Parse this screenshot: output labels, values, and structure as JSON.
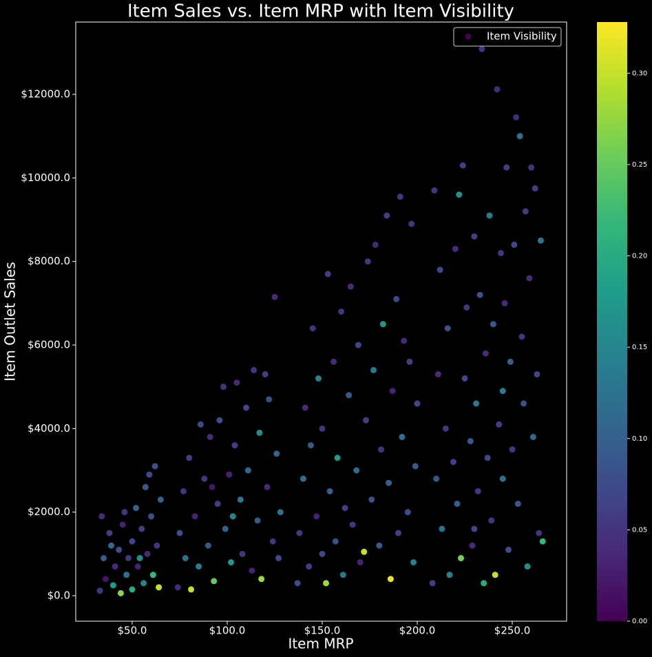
{
  "chart_data": {
    "type": "scatter",
    "title": "Item Sales vs. Item MRP with Item Visibility",
    "x_label": "Item MRP",
    "y_label": "Item Outlet Sales",
    "xlim": [
      20.3,
      278.6
    ],
    "ylim": [
      -610,
      13731
    ],
    "xticks": [
      {
        "value": 50,
        "label": "$50.0"
      },
      {
        "value": 100,
        "label": "$100.0"
      },
      {
        "value": 150,
        "label": "$150.0"
      },
      {
        "value": 200,
        "label": "$200.0"
      },
      {
        "value": 250,
        "label": "$250.0"
      }
    ],
    "yticks": [
      {
        "value": 0,
        "label": "$0.0"
      },
      {
        "value": 2000,
        "label": "$2000.0"
      },
      {
        "value": 4000,
        "label": "$4000.0"
      },
      {
        "value": 6000,
        "label": "$6000.0"
      },
      {
        "value": 8000,
        "label": "$8000.0"
      },
      {
        "value": 10000,
        "label": "$10000.0"
      },
      {
        "value": 12000,
        "label": "$12000.0"
      }
    ],
    "legend_position": "upper right",
    "colormap": "viridis",
    "colorbar": {
      "lim": [
        0,
        0.328
      ],
      "ticks": [
        {
          "value": 0,
          "label": "0.00"
        },
        {
          "value": 0.05,
          "label": "0.05"
        },
        {
          "value": 0.1,
          "label": "0.10"
        },
        {
          "value": 0.15,
          "label": "0.15"
        },
        {
          "value": 0.2,
          "label": "0.20"
        },
        {
          "value": 0.25,
          "label": "0.25"
        },
        {
          "value": 0.3,
          "label": "0.30"
        }
      ]
    },
    "series": [
      {
        "name": "Item Visibility",
        "x": [
          33,
          35,
          36,
          38,
          40,
          41,
          43,
          44,
          45,
          47,
          48,
          50,
          50,
          52,
          53,
          55,
          56,
          57,
          58,
          60,
          61,
          62,
          63,
          65,
          64,
          34,
          39,
          46,
          54,
          59,
          74,
          75,
          77,
          78,
          80,
          81,
          83,
          85,
          86,
          88,
          90,
          91,
          93,
          95,
          96,
          98,
          99,
          101,
          102,
          104,
          105,
          107,
          108,
          110,
          111,
          113,
          114,
          116,
          117,
          118,
          120,
          121,
          122,
          124,
          125,
          126,
          127,
          128,
          103,
          92,
          137,
          138,
          140,
          141,
          143,
          144,
          145,
          147,
          148,
          150,
          150,
          152,
          153,
          154,
          156,
          157,
          158,
          160,
          161,
          162,
          164,
          165,
          166,
          168,
          169,
          170,
          172,
          173,
          174,
          176,
          177,
          178,
          180,
          181,
          182,
          184,
          185,
          186,
          187,
          189,
          190,
          191,
          192,
          193,
          195,
          196,
          197,
          198,
          199,
          200,
          208,
          209,
          210,
          211,
          212,
          213,
          215,
          216,
          217,
          219,
          220,
          221,
          222,
          223,
          224,
          225,
          226,
          228,
          229,
          230,
          231,
          232,
          233,
          234,
          235,
          236,
          237,
          238,
          239,
          240,
          241,
          242,
          243,
          244,
          245,
          246,
          247,
          248,
          249,
          250,
          251,
          252,
          253,
          254,
          255,
          256,
          257,
          258,
          259,
          260,
          261,
          262,
          263,
          264,
          265,
          266,
          245,
          230
        ],
        "values": [
          120,
          900,
          400,
          1500,
          250,
          700,
          1100,
          60,
          1700,
          500,
          900,
          1300,
          150,
          2100,
          700,
          1600,
          300,
          2600,
          1000,
          1900,
          500,
          3100,
          1200,
          2300,
          200,
          1900,
          1200,
          2000,
          900,
          2900,
          200,
          1500,
          2500,
          900,
          3300,
          150,
          1900,
          700,
          4100,
          2800,
          1200,
          3800,
          350,
          2200,
          4200,
          5000,
          1600,
          2900,
          800,
          3600,
          5100,
          2300,
          1000,
          4500,
          3000,
          600,
          5400,
          1800,
          3900,
          400,
          5300,
          2600,
          4700,
          1300,
          7150,
          3400,
          900,
          2000,
          1900,
          2600,
          300,
          1500,
          2800,
          4500,
          700,
          3600,
          6400,
          1900,
          5200,
          1000,
          4000,
          300,
          7700,
          2500,
          5600,
          1300,
          3300,
          6800,
          500,
          2100,
          4800,
          7400,
          1700,
          3000,
          6000,
          800,
          1050,
          4200,
          8000,
          2300,
          5400,
          8400,
          1200,
          3500,
          6500,
          9100,
          2700,
          400,
          4900,
          7100,
          1500,
          9550,
          3800,
          6100,
          2000,
          5600,
          8900,
          800,
          3100,
          4600,
          300,
          9700,
          2800,
          5300,
          7800,
          1600,
          4000,
          6400,
          500,
          3200,
          8300,
          2200,
          9600,
          900,
          10300,
          5200,
          6900,
          3700,
          1200,
          8600,
          4600,
          2500,
          7200,
          13086,
          300,
          5800,
          3300,
          9100,
          1800,
          6500,
          500,
          12120,
          4100,
          8200,
          2800,
          7000,
          10250,
          1100,
          5600,
          3500,
          8400,
          11450,
          2200,
          11000,
          6200,
          4600,
          9200,
          700,
          7600,
          10250,
          3800,
          9750,
          5300,
          1500,
          8500,
          1300,
          4900,
          1600
        ],
        "color_values": [
          0.05,
          0.09,
          0.02,
          0.06,
          0.18,
          0.04,
          0.08,
          0.27,
          0.03,
          0.12,
          0.05,
          0.07,
          0.2,
          0.1,
          0.03,
          0.06,
          0.15,
          0.09,
          0.04,
          0.08,
          0.22,
          0.08,
          0.05,
          0.1,
          0.3,
          0.04,
          0.11,
          0.05,
          0.16,
          0.07,
          0.04,
          0.08,
          0.05,
          0.12,
          0.06,
          0.3,
          0.03,
          0.14,
          0.07,
          0.05,
          0.09,
          0.04,
          0.25,
          0.06,
          0.08,
          0.05,
          0.1,
          0.03,
          0.18,
          0.06,
          0.04,
          0.13,
          0.05,
          0.07,
          0.11,
          0.03,
          0.05,
          0.09,
          0.16,
          0.28,
          0.06,
          0.04,
          0.08,
          0.05,
          0.04,
          0.1,
          0.07,
          0.12,
          0.15,
          0.02,
          0.08,
          0.05,
          0.12,
          0.04,
          0.06,
          0.09,
          0.05,
          0.03,
          0.14,
          0.07,
          0.05,
          0.28,
          0.06,
          0.1,
          0.04,
          0.08,
          0.18,
          0.05,
          0.13,
          0.06,
          0.09,
          0.04,
          0.05,
          0.11,
          0.07,
          0.03,
          0.3,
          0.06,
          0.05,
          0.08,
          0.13,
          0.04,
          0.09,
          0.05,
          0.17,
          0.06,
          0.1,
          0.32,
          0.03,
          0.07,
          0.06,
          0.05,
          0.12,
          0.04,
          0.08,
          0.06,
          0.05,
          0.14,
          0.09,
          0.07,
          0.06,
          0.05,
          0.09,
          0.04,
          0.07,
          0.12,
          0.05,
          0.08,
          0.15,
          0.06,
          0.04,
          0.1,
          0.16,
          0.26,
          0.06,
          0.07,
          0.05,
          0.09,
          0.04,
          0.06,
          0.13,
          0.05,
          0.08,
          0.05,
          0.2,
          0.04,
          0.07,
          0.14,
          0.05,
          0.09,
          0.3,
          0.04,
          0.06,
          0.05,
          0.12,
          0.04,
          0.06,
          0.08,
          0.1,
          0.05,
          0.07,
          0.04,
          0.09,
          0.12,
          0.05,
          0.08,
          0.06,
          0.16,
          0.04,
          0.05,
          0.11,
          0.06,
          0.07,
          0.05,
          0.13,
          0.22,
          0.14,
          0.07
        ]
      }
    ]
  }
}
